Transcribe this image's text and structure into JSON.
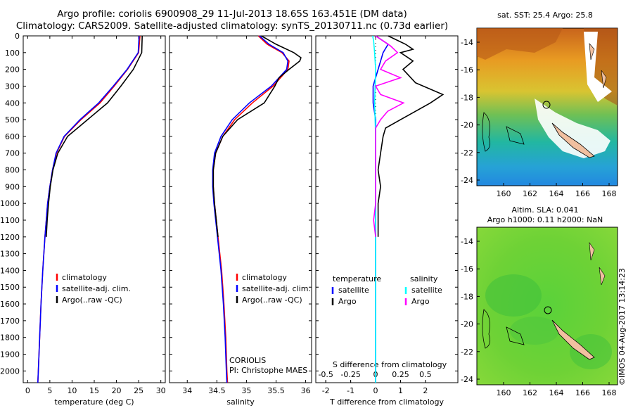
{
  "header": {
    "title_line1": "Argo profile: coriolis 6900908_29 11-Jul-2013 18.65S 163.451E (DM data)",
    "title_line2": "Climatology: CARS2009. Satellite-adjusted climatology: synTS_20130711.nc (0.73d earlier)"
  },
  "colors": {
    "climatology": "#ff0000",
    "satellite": "#0000ff",
    "argo": "#000000",
    "sat_salinity": "#00ffff",
    "argo_salinity": "#ff00ff"
  },
  "chart_data": [
    {
      "type": "line",
      "xlabel": "temperature (deg C)",
      "xlim": [
        -1,
        31
      ],
      "xticks": [
        "0",
        "5",
        "10",
        "15",
        "20",
        "25",
        "30"
      ],
      "ylim": [
        0,
        2070
      ],
      "yticks": [
        "0",
        "100",
        "200",
        "300",
        "400",
        "500",
        "600",
        "700",
        "800",
        "900",
        "1000",
        "1100",
        "1200",
        "1300",
        "1400",
        "1500",
        "1600",
        "1700",
        "1800",
        "1900",
        "2000"
      ],
      "legend": [
        "climatology",
        "satellite-adj. clim.",
        "Argo(..raw -QC)"
      ],
      "series": [
        {
          "name": "climatology",
          "color": "#ff0000",
          "depth": [
            0,
            100,
            200,
            300,
            400,
            500,
            600,
            700,
            800,
            900,
            1000,
            1200,
            1400,
            1600,
            1800,
            2000,
            2070
          ],
          "values": [
            25.3,
            25.0,
            22.5,
            19.5,
            16.3,
            12.0,
            8.3,
            6.5,
            5.6,
            5.0,
            4.5,
            3.9,
            3.4,
            3.0,
            2.7,
            2.4,
            2.3
          ]
        },
        {
          "name": "satellite-adj. clim.",
          "color": "#0000ff",
          "depth": [
            0,
            100,
            200,
            300,
            400,
            500,
            600,
            700,
            800,
            900,
            1000,
            1200,
            1400,
            1600,
            1800,
            2000,
            2070
          ],
          "values": [
            25.1,
            24.9,
            22.4,
            19.3,
            16.0,
            11.8,
            8.2,
            6.4,
            5.6,
            5.0,
            4.5,
            3.9,
            3.4,
            3.0,
            2.7,
            2.4,
            2.3
          ]
        },
        {
          "name": "Argo(..raw -QC)",
          "color": "#000000",
          "depth": [
            0,
            100,
            200,
            300,
            400,
            500,
            600,
            700,
            800,
            900,
            1000,
            1100,
            1200
          ],
          "values": [
            25.8,
            25.7,
            23.8,
            21.0,
            18.0,
            13.5,
            9.0,
            6.8,
            5.7,
            5.1,
            4.7,
            4.4,
            4.2
          ]
        }
      ]
    },
    {
      "type": "line",
      "xlabel": "salinity",
      "xlim": [
        33.7,
        36.1
      ],
      "xticks": [
        "34",
        "34.5",
        "35",
        "35.5",
        "36"
      ],
      "ylim": [
        0,
        2070
      ],
      "legend": [
        "climatology",
        "satellite-adj. clim.",
        "Argo(..raw -QC)"
      ],
      "annotation": [
        "CORIOLIS",
        "PI: Christophe MAES"
      ],
      "series": [
        {
          "name": "climatology",
          "color": "#ff0000",
          "depth": [
            0,
            50,
            100,
            150,
            200,
            300,
            400,
            500,
            600,
            700,
            800,
            900,
            1000,
            1200,
            1400,
            1600,
            1800,
            2000,
            2070
          ],
          "values": [
            35.2,
            35.35,
            35.6,
            35.72,
            35.7,
            35.45,
            35.1,
            34.8,
            34.6,
            34.48,
            34.44,
            34.44,
            34.46,
            34.52,
            34.58,
            34.62,
            34.65,
            34.67,
            34.68
          ]
        },
        {
          "name": "satellite-adj. clim.",
          "color": "#0000ff",
          "depth": [
            0,
            50,
            100,
            150,
            200,
            300,
            400,
            500,
            600,
            700,
            800,
            900,
            1000,
            1200,
            1400,
            1600,
            1800,
            2000,
            2070
          ],
          "values": [
            35.22,
            35.38,
            35.62,
            35.7,
            35.68,
            35.42,
            35.05,
            34.76,
            34.57,
            34.46,
            34.43,
            34.43,
            34.45,
            34.51,
            34.57,
            34.61,
            34.64,
            34.66,
            34.67
          ]
        },
        {
          "name": "Argo(..raw -QC)",
          "color": "#000000",
          "depth": [
            0,
            50,
            100,
            130,
            150,
            200,
            250,
            300,
            400,
            500,
            600,
            700,
            800,
            900,
            1000,
            1100,
            1200
          ],
          "values": [
            35.25,
            35.5,
            35.8,
            35.92,
            35.9,
            35.72,
            35.55,
            35.48,
            35.3,
            34.85,
            34.6,
            34.48,
            34.44,
            34.44,
            34.46,
            34.49,
            34.52
          ]
        }
      ]
    },
    {
      "type": "line",
      "xlabel_top": "S difference from climatology",
      "xticks_top": [
        "-0.5",
        "-0.25",
        "0",
        "0.25",
        "0.5"
      ],
      "xlabel": "T difference from climatology",
      "xlim": [
        -2.4,
        3.3
      ],
      "xticks": [
        "-2",
        "-1",
        "0",
        "1",
        "2"
      ],
      "ylim": [
        0,
        2070
      ],
      "legend_headers": [
        "temperature",
        "salinity"
      ],
      "legend": [
        "satellite",
        "Argo",
        "satellite",
        "Argo"
      ],
      "series": [
        {
          "name": "T satellite",
          "color": "#0000ff",
          "depth": [
            0,
            50,
            100,
            200,
            300,
            400,
            500,
            600,
            800,
            1000,
            2070
          ],
          "values": [
            0.0,
            0.5,
            0.3,
            0.1,
            -0.1,
            -0.1,
            0.0,
            0.0,
            0.0,
            0.0,
            0.0
          ]
        },
        {
          "name": "T Argo",
          "color": "#000000",
          "depth": [
            0,
            50,
            80,
            100,
            150,
            200,
            280,
            350,
            400,
            450,
            500,
            550,
            600,
            700,
            800,
            900,
            1000,
            1100,
            1200
          ],
          "values": [
            0.5,
            1.2,
            1.5,
            1.0,
            1.5,
            1.1,
            1.6,
            2.7,
            2.2,
            1.6,
            1.0,
            0.4,
            0.3,
            0.2,
            0.1,
            0.2,
            0.1,
            0.1,
            0.1
          ]
        },
        {
          "name": "S satellite",
          "color": "#00ffff",
          "depth": [
            0,
            30,
            100,
            200,
            400,
            600,
            800,
            1000,
            1200,
            1500,
            1800,
            2070
          ],
          "values": [
            -0.03,
            -0.02,
            -0.01,
            0.0,
            -0.01,
            0.0,
            0.0,
            0.0,
            0.0,
            0.0,
            0.0,
            0.0
          ]
        },
        {
          "name": "S Argo",
          "color": "#ff00ff",
          "depth": [
            0,
            60,
            100,
            150,
            200,
            250,
            300,
            350,
            400,
            450,
            500,
            550,
            600,
            800,
            1000,
            1100,
            1200
          ],
          "values": [
            0.0,
            0.15,
            0.22,
            0.1,
            0.05,
            0.25,
            0.0,
            0.05,
            0.28,
            0.12,
            0.05,
            0.0,
            0.0,
            0.0,
            0.0,
            -0.02,
            0.0
          ]
        }
      ]
    }
  ],
  "maps": {
    "sst_label": "sat. SST: 25.4  Argo: 25.8",
    "sla_label_1": "Altim. SLA: 0.041",
    "sla_label_2": "Argo h1000: 0.11 h2000: NaN",
    "lat_ticks": [
      "-14",
      "-16",
      "-18",
      "-20",
      "-22",
      "-24"
    ],
    "lon_ticks": [
      "160",
      "162",
      "164",
      "166",
      "168"
    ]
  },
  "stamp": "©IMOS 04-Aug-2017 13:14:23"
}
